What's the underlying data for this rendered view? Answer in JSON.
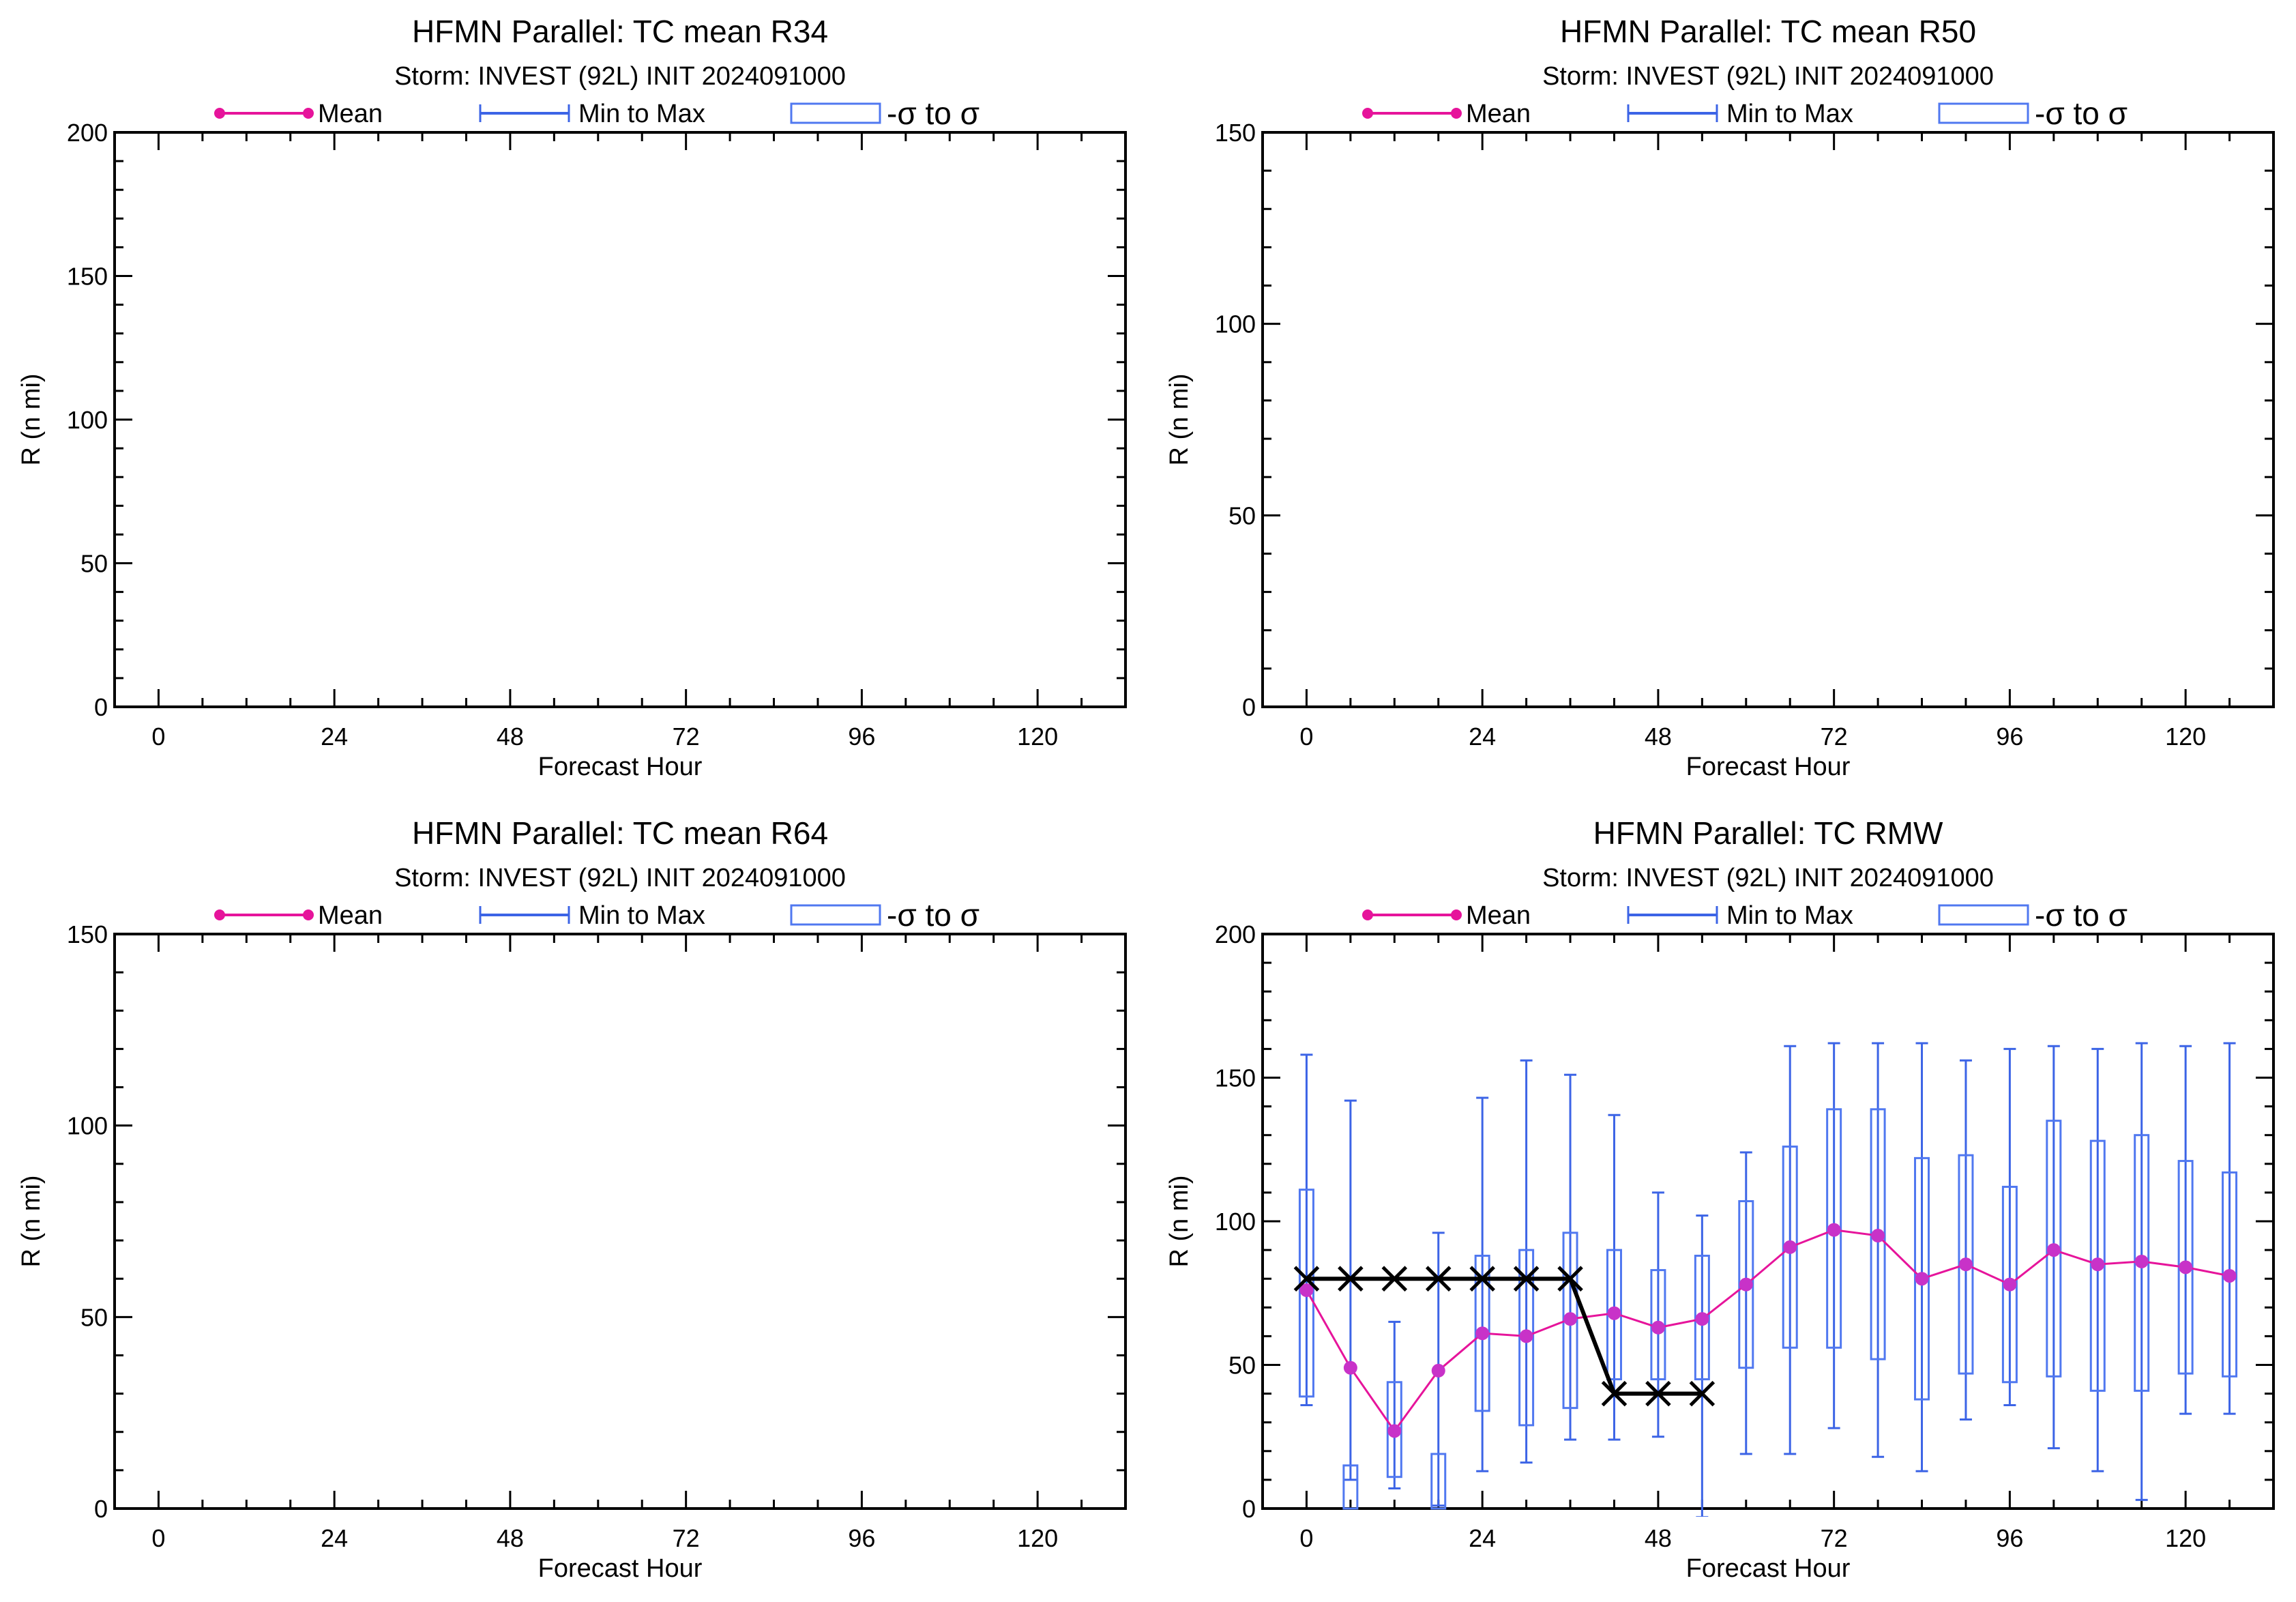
{
  "colors": {
    "mean": "#e6149b",
    "mean_marker_rmw": "#c832c8",
    "range": "#3c64e6",
    "sigma_box": "#5078f0",
    "observed": "#000000",
    "axes": "#000000"
  },
  "legend": {
    "mean": "Mean",
    "range": "Min to Max",
    "sigma": "-σ to σ"
  },
  "chart_data": [
    {
      "id": "r34",
      "type": "box",
      "title": "HFMN Parallel: TC mean R34",
      "subtitle": "Storm: INVEST (92L) INIT 2024091000",
      "xlabel": "Forecast Hour",
      "ylabel": "R (n mi)",
      "xlim": [
        -6,
        132
      ],
      "ylim": [
        0,
        200
      ],
      "xticks": [
        0,
        24,
        48,
        72,
        96,
        120
      ],
      "yticks": [
        0,
        50,
        100,
        150,
        200
      ],
      "series": []
    },
    {
      "id": "r50",
      "type": "box",
      "title": "HFMN Parallel: TC mean R50",
      "subtitle": "Storm: INVEST (92L) INIT 2024091000",
      "xlabel": "Forecast Hour",
      "ylabel": "R (n mi)",
      "xlim": [
        -6,
        132
      ],
      "ylim": [
        0,
        150
      ],
      "xticks": [
        0,
        24,
        48,
        72,
        96,
        120
      ],
      "yticks": [
        0,
        50,
        100,
        150
      ],
      "series": []
    },
    {
      "id": "r64",
      "type": "box",
      "title": "HFMN Parallel: TC mean R64",
      "subtitle": "Storm: INVEST (92L) INIT 2024091000",
      "xlabel": "Forecast Hour",
      "ylabel": "R (n mi)",
      "xlim": [
        -6,
        132
      ],
      "ylim": [
        0,
        150
      ],
      "xticks": [
        0,
        24,
        48,
        72,
        96,
        120
      ],
      "yticks": [
        0,
        50,
        100,
        150
      ],
      "series": []
    },
    {
      "id": "rmw",
      "type": "box",
      "title": "HFMN Parallel: TC RMW",
      "subtitle": "Storm: INVEST (92L) INIT 2024091000",
      "xlabel": "Forecast Hour",
      "ylabel": "R (n mi)",
      "xlim": [
        -6,
        132
      ],
      "ylim": [
        0,
        200
      ],
      "xticks": [
        0,
        24,
        48,
        72,
        96,
        120
      ],
      "yticks": [
        0,
        50,
        100,
        150,
        200
      ],
      "x": [
        0,
        6,
        12,
        18,
        24,
        30,
        36,
        42,
        48,
        54,
        60,
        66,
        72,
        78,
        84,
        90,
        96,
        102,
        108,
        114,
        120,
        126
      ],
      "mean": [
        76,
        49,
        27,
        48,
        61,
        60,
        66,
        68,
        63,
        66,
        78,
        91,
        97,
        95,
        80,
        85,
        78,
        90,
        85,
        86,
        84,
        81
      ],
      "min": [
        36,
        10,
        7,
        1,
        13,
        16,
        24,
        24,
        25,
        -3,
        19,
        19,
        28,
        18,
        13,
        31,
        36,
        21,
        13,
        3,
        33,
        33
      ],
      "max": [
        158,
        142,
        65,
        96,
        143,
        156,
        151,
        137,
        110,
        102,
        124,
        161,
        162,
        162,
        162,
        156,
        160,
        161,
        160,
        162,
        161,
        162
      ],
      "sigma_low": [
        39,
        15,
        11,
        19,
        34,
        29,
        35,
        45,
        45,
        45,
        49,
        56,
        56,
        52,
        38,
        47,
        44,
        46,
        41,
        41,
        47,
        46
      ],
      "sigma_high": [
        111,
        0,
        44,
        0,
        88,
        90,
        96,
        90,
        83,
        88,
        107,
        126,
        139,
        139,
        122,
        123,
        112,
        135,
        128,
        130,
        121,
        117
      ],
      "observed_x": [
        0,
        6,
        12,
        18,
        24,
        30,
        36,
        42,
        48,
        54
      ],
      "observed": [
        80,
        80,
        80,
        80,
        80,
        80,
        80,
        40,
        40,
        40
      ]
    }
  ]
}
